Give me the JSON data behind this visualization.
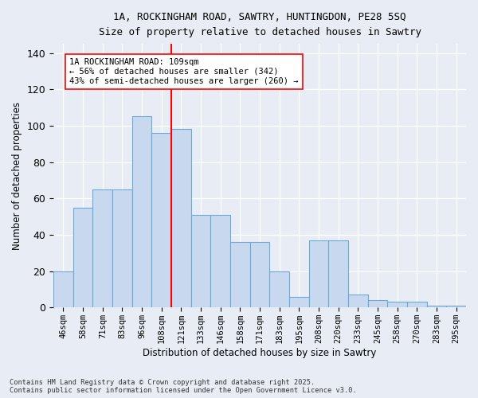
{
  "title_line1": "1A, ROCKINGHAM ROAD, SAWTRY, HUNTINGDON, PE28 5SQ",
  "title_line2": "Size of property relative to detached houses in Sawtry",
  "xlabel": "Distribution of detached houses by size in Sawtry",
  "ylabel": "Number of detached properties",
  "bar_labels": [
    "46sqm",
    "58sqm",
    "71sqm",
    "83sqm",
    "96sqm",
    "108sqm",
    "121sqm",
    "133sqm",
    "146sqm",
    "158sqm",
    "171sqm",
    "183sqm",
    "195sqm",
    "208sqm",
    "220sqm",
    "233sqm",
    "245sqm",
    "258sqm",
    "270sqm",
    "283sqm",
    "295sqm"
  ],
  "bar_values": [
    20,
    55,
    65,
    65,
    105,
    96,
    98,
    51,
    51,
    36,
    36,
    20,
    6,
    37,
    37,
    7,
    4,
    3,
    3,
    1,
    1
  ],
  "bar_color": "#c8d9ef",
  "bar_edge_color": "#6aaad4",
  "vline_x": 5.5,
  "vline_color": "red",
  "annotation_title": "1A ROCKINGHAM ROAD: 109sqm",
  "annotation_line2": "← 56% of detached houses are smaller (342)",
  "annotation_line3": "43% of semi-detached houses are larger (260) →",
  "annotation_box_color": "white",
  "annotation_box_edge": "red",
  "ylim": [
    0,
    145
  ],
  "yticks": [
    0,
    20,
    40,
    60,
    80,
    100,
    120,
    140
  ],
  "footer_line1": "Contains HM Land Registry data © Crown copyright and database right 2025.",
  "footer_line2": "Contains public sector information licensed under the Open Government Licence v3.0.",
  "background_color": "#e8edf5",
  "plot_background": "#e8edf5"
}
